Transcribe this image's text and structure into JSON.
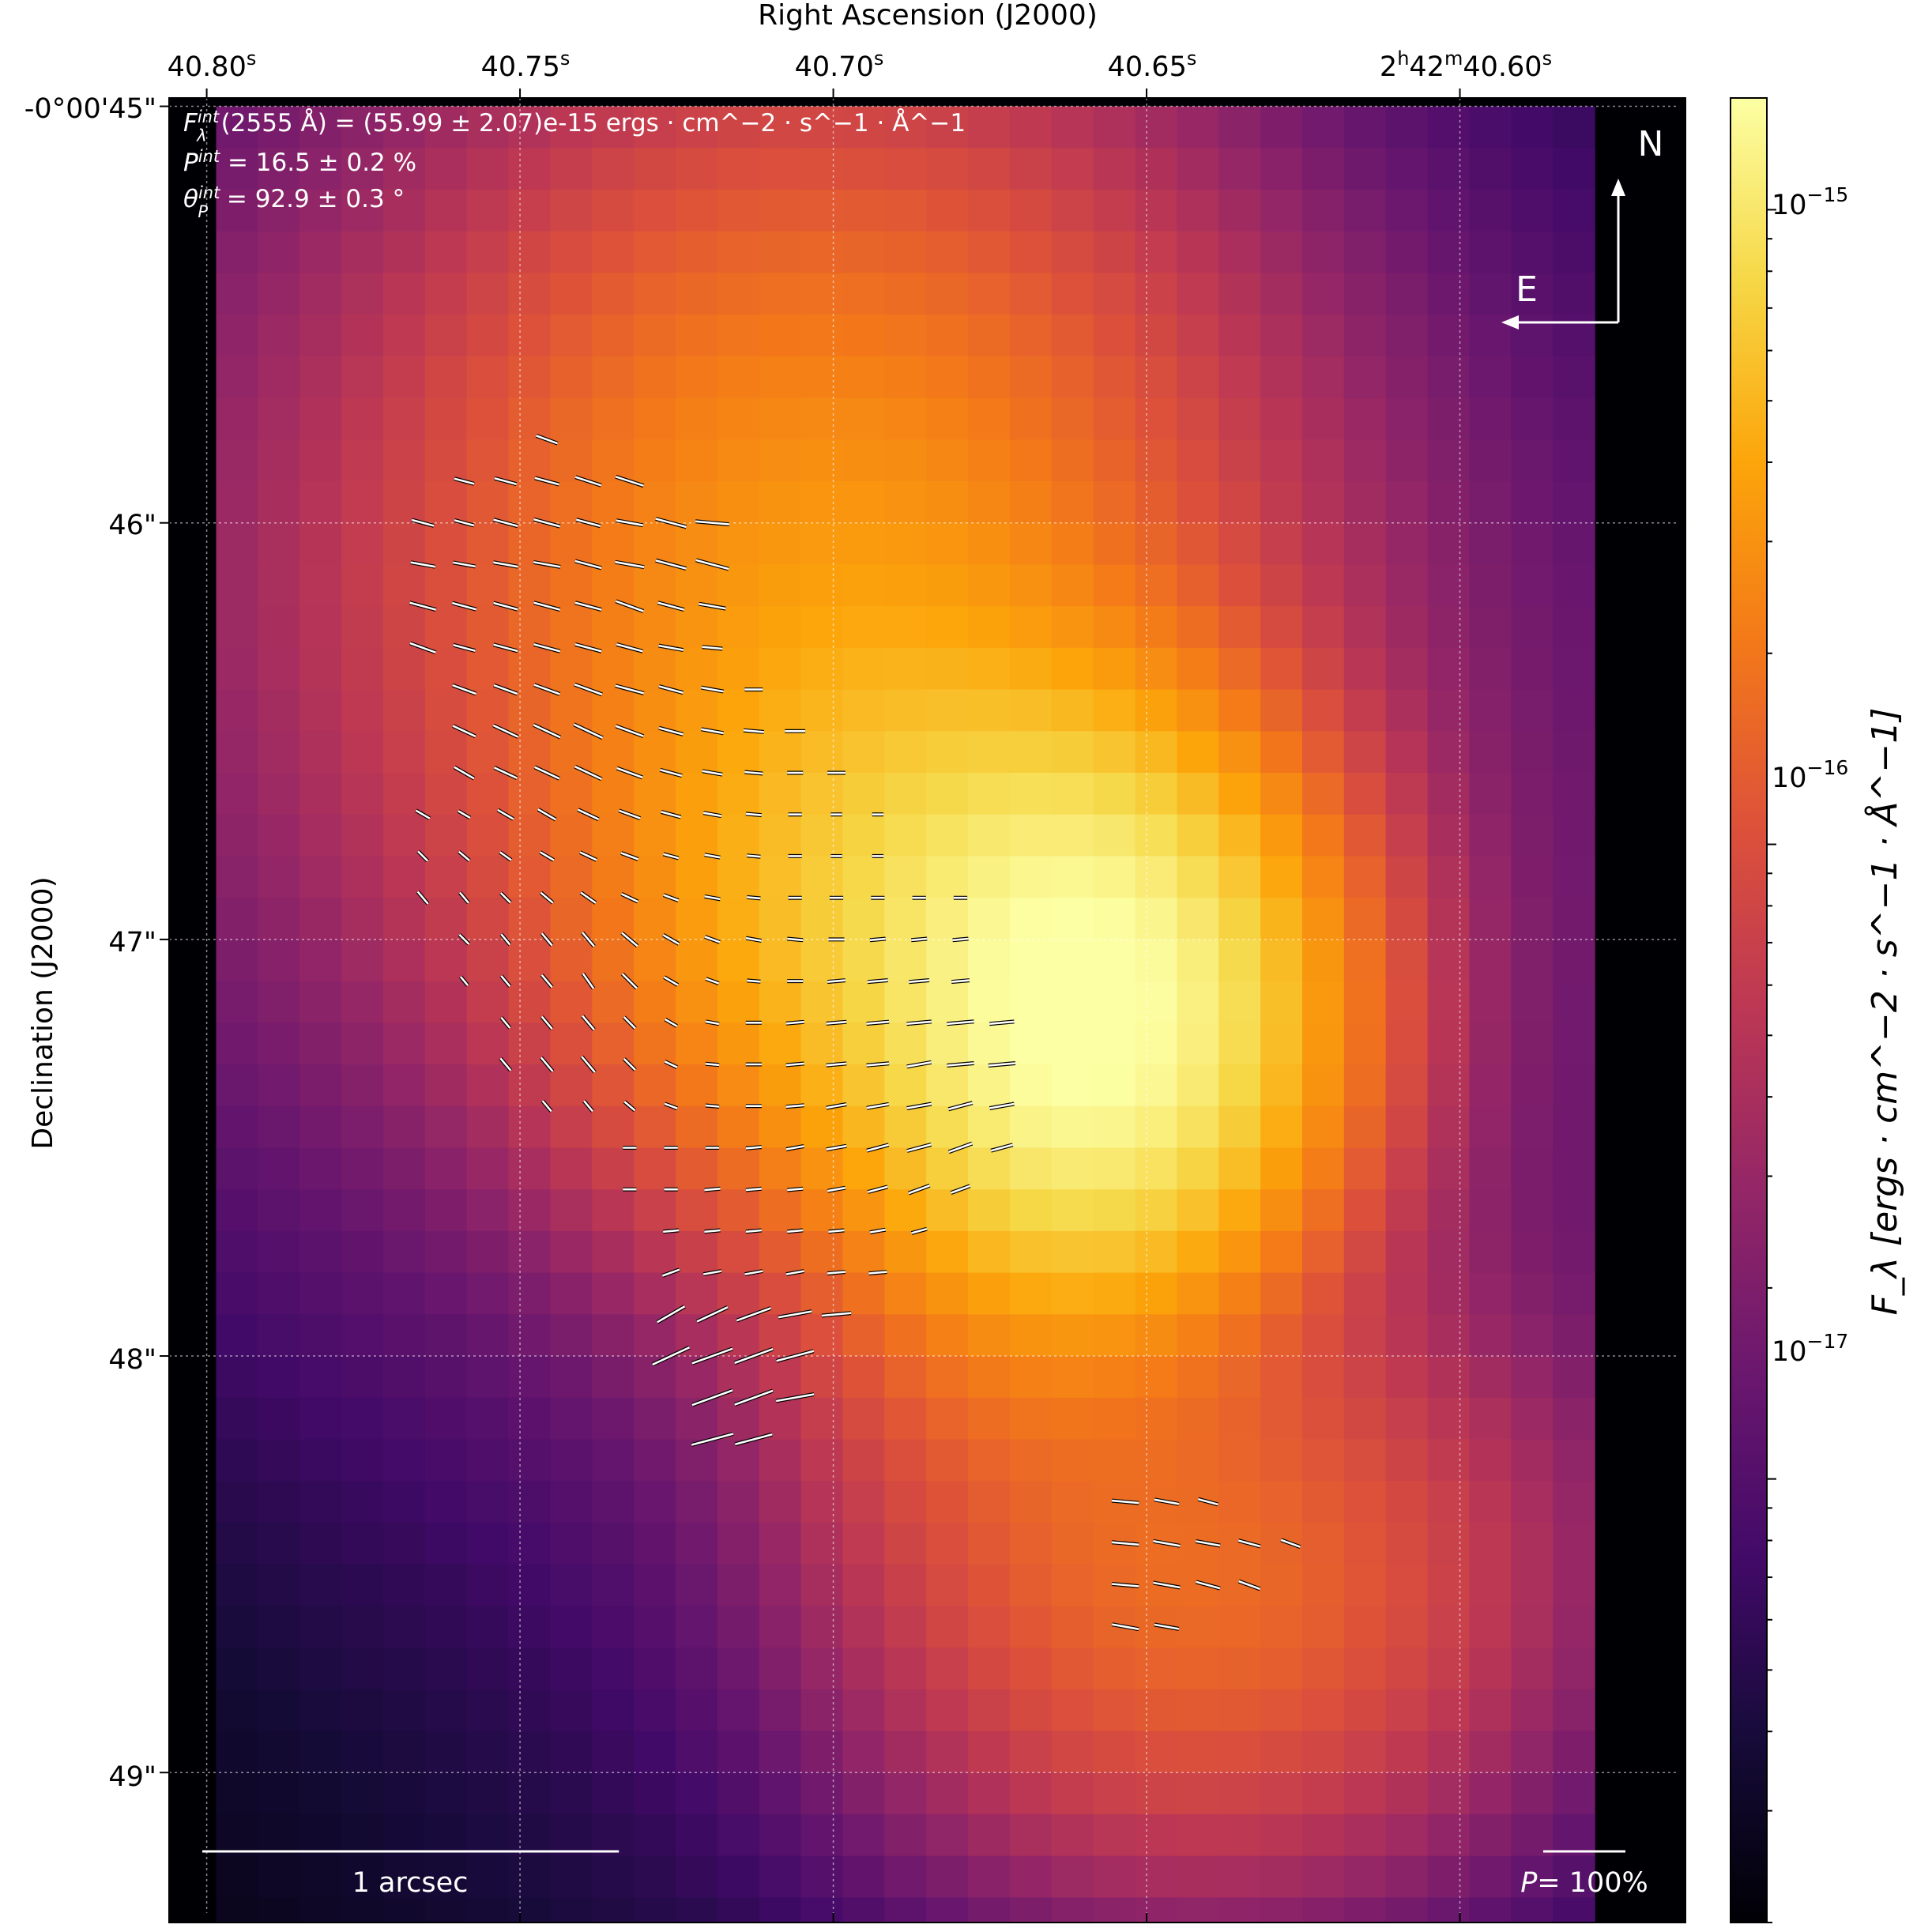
{
  "chart_data": {
    "type": "heatmap",
    "subtype": "polarization-map",
    "xlabel": "Right Ascension (J2000)",
    "ylabel": "Declination (J2000)",
    "colorbar_label": "F_λ [ergs · cm^−2 · s^−1 · Å^−1]",
    "colorbar_scale": "log",
    "colorbar_range": [
      2e-18,
      1.5e-15
    ],
    "colorbar_ticks": [
      {
        "value": 1e-15,
        "base": "10",
        "exp": "−15"
      },
      {
        "value": 1e-16,
        "base": "10",
        "exp": "−16"
      },
      {
        "value": 1e-17,
        "base": "10",
        "exp": "−17"
      }
    ],
    "colormap": "inferno",
    "colormap_stops": [
      "#000004",
      "#160b39",
      "#420a68",
      "#6a176e",
      "#932667",
      "#bc3754",
      "#dd513a",
      "#f37819",
      "#fca50a",
      "#f6d746",
      "#fcffa4"
    ],
    "x_ticks": [
      {
        "pre": "40.80",
        "sup": "s"
      },
      {
        "pre": "40.75",
        "sup": "s"
      },
      {
        "pre": "40.70",
        "sup": "s"
      },
      {
        "pre": "40.65",
        "sup": "s"
      },
      {
        "pre": "2",
        "sup": "h",
        "mid": "42",
        "sup2": "m",
        "post": "40.60",
        "sup3": "s"
      }
    ],
    "y_ticks": [
      "-0°00'45\"",
      "46\"",
      "47\"",
      "48\"",
      "49\""
    ],
    "ra_range_sec": [
      40.806,
      40.564
    ],
    "dec_range_arcsec": [
      44.98,
      49.36
    ],
    "grid": true,
    "annotation_lines": [
      {
        "sym": "F",
        "sub": "λ",
        "sup": "int",
        "rest": "(2555 Å) = (55.99 ± 2.07)e-15 ergs · cm^−2 · s^−1 · Å^−1"
      },
      {
        "sym": "P",
        "sup": "int",
        "rest": " = 16.5 ± 0.2 %"
      },
      {
        "sym": "θ",
        "sub": "P",
        "sup": "int",
        "rest": " = 92.9 ± 0.3 °"
      }
    ],
    "compass": {
      "north": "N",
      "east": "E"
    },
    "scale_bar": {
      "label": "1 arcsec",
      "arcsec": 1.0
    },
    "pol_scale": {
      "label_sym": "P",
      "label_rest": "= 100%"
    },
    "flux_map": {
      "ra_start_sec": 40.7985,
      "dec_start_arcsec": 45.0,
      "step_arcsec": 0.1,
      "nx": 33,
      "ny": 44,
      "components": [
        {
          "ra_sec": 40.664,
          "dec_arcsec": 47.19,
          "peak": 1.4e-15,
          "sigma_ra_arcsec": 0.3,
          "sigma_dec_arcsec": 0.38
        },
        {
          "ra_sec": 40.695,
          "dec_arcsec": 46.95,
          "peak": 5e-16,
          "sigma_ra_arcsec": 0.4,
          "sigma_dec_arcsec": 0.42
        },
        {
          "ra_sec": 40.708,
          "dec_arcsec": 46.1,
          "peak": 2.6e-16,
          "sigma_ra_arcsec": 0.55,
          "sigma_dec_arcsec": 0.62
        },
        {
          "ra_sec": 40.648,
          "dec_arcsec": 48.55,
          "peak": 1.5e-16,
          "sigma_ra_arcsec": 0.45,
          "sigma_dec_arcsec": 0.4
        },
        {
          "ra_sec": 40.683,
          "dec_arcsec": 47.85,
          "peak": 8e-17,
          "sigma_ra_arcsec": 0.3,
          "sigma_dec_arcsec": 0.4
        },
        {
          "ra_sec": 40.735,
          "dec_arcsec": 46.1,
          "peak": 3e-17,
          "sigma_ra_arcsec": 1.1,
          "sigma_dec_arcsec": 1.0
        },
        {
          "ra_sec": 40.645,
          "dec_arcsec": 47.4,
          "peak": 1.4e-17,
          "sigma_ra_arcsec": 1.2,
          "sigma_dec_arcsec": 1.3
        }
      ],
      "background": 2e-18
    },
    "vector_groups": [
      {
        "ra_start_sec": 40.7655,
        "ra_step_sec": 0.0066,
        "dec_start_arcsec": 45.8,
        "dec_step_arcsec": 0.1,
        "rows": [
          {
            "i0": 3,
            "n": 1,
            "len": [
              0.5
            ],
            "pa": [
              70
            ]
          },
          {
            "i0": 1,
            "n": 5,
            "len": [
              0.45,
              0.5,
              0.55,
              0.6,
              0.65
            ],
            "pa": [
              75,
              75,
              75,
              72,
              72
            ]
          },
          {
            "i0": 0,
            "n": 8,
            "len": [
              0.5,
              0.45,
              0.55,
              0.6,
              0.55,
              0.6,
              0.7,
              0.75
            ],
            "pa": [
              75,
              75,
              75,
              75,
              75,
              80,
              75,
              85
            ]
          },
          {
            "i0": 0,
            "n": 8,
            "len": [
              0.55,
              0.5,
              0.55,
              0.6,
              0.6,
              0.65,
              0.7,
              0.75
            ],
            "pa": [
              80,
              80,
              80,
              80,
              75,
              80,
              75,
              75
            ]
          },
          {
            "i0": 0,
            "n": 8,
            "len": [
              0.6,
              0.55,
              0.55,
              0.6,
              0.6,
              0.65,
              0.6,
              0.6
            ],
            "pa": [
              75,
              75,
              75,
              75,
              75,
              70,
              75,
              80
            ]
          },
          {
            "i0": 0,
            "n": 8,
            "len": [
              0.6,
              0.5,
              0.55,
              0.6,
              0.6,
              0.6,
              0.55,
              0.45
            ],
            "pa": [
              70,
              75,
              75,
              75,
              75,
              75,
              80,
              85
            ]
          },
          {
            "i0": 1,
            "n": 8,
            "len": [
              0.55,
              0.55,
              0.6,
              0.65,
              0.65,
              0.55,
              0.5,
              0.4
            ],
            "pa": [
              70,
              70,
              70,
              70,
              75,
              75,
              80,
              90
            ]
          },
          {
            "i0": 1,
            "n": 9,
            "len": [
              0.55,
              0.6,
              0.65,
              0.7,
              0.65,
              0.55,
              0.5,
              0.45,
              0.45
            ],
            "pa": [
              65,
              65,
              65,
              65,
              70,
              75,
              80,
              85,
              90
            ]
          },
          {
            "i0": 1,
            "n": 10,
            "len": [
              0.5,
              0.55,
              0.6,
              0.65,
              0.6,
              0.5,
              0.45,
              0.4,
              0.35,
              0.4
            ],
            "pa": [
              60,
              65,
              65,
              65,
              70,
              75,
              80,
              85,
              90,
              90
            ]
          },
          {
            "i0": 0,
            "n": 12,
            "len": [
              0.35,
              0.3,
              0.4,
              0.45,
              0.5,
              0.5,
              0.45,
              0.4,
              0.35,
              0.3,
              0.25,
              0.25
            ],
            "pa": [
              60,
              60,
              60,
              60,
              65,
              70,
              75,
              80,
              85,
              90,
              90,
              90
            ]
          }
        ]
      },
      {
        "ra_start_sec": 40.7655,
        "ra_step_sec": 0.0066,
        "dec_start_arcsec": 46.8,
        "dec_step_arcsec": 0.1,
        "rows": [
          {
            "i0": 0,
            "n": 13,
            "len": [
              0.3,
              0.3,
              0.3,
              0.35,
              0.4,
              0.4,
              0.35,
              0.35,
              0.3,
              0.3,
              0.25,
              0.25,
              0.0
            ],
            "pa": [
              45,
              50,
              55,
              60,
              65,
              70,
              75,
              80,
              85,
              90,
              90,
              90,
              90
            ]
          },
          {
            "i0": 0,
            "n": 14,
            "len": [
              0.35,
              0.3,
              0.3,
              0.35,
              0.4,
              0.4,
              0.35,
              0.35,
              0.3,
              0.3,
              0.3,
              0.3,
              0.3,
              0.3
            ],
            "pa": [
              40,
              40,
              45,
              50,
              55,
              65,
              70,
              80,
              85,
              90,
              90,
              90,
              90,
              90
            ]
          },
          {
            "i0": 1,
            "n": 13,
            "len": [
              0.3,
              0.3,
              0.35,
              0.4,
              0.45,
              0.4,
              0.35,
              0.35,
              0.35,
              0.35,
              0.35,
              0.35,
              0.35
            ],
            "pa": [
              45,
              40,
              40,
              40,
              50,
              60,
              70,
              80,
              85,
              90,
              95,
              95,
              95
            ]
          },
          {
            "i0": 1,
            "n": 13,
            "len": [
              0.25,
              0.3,
              0.35,
              0.4,
              0.45,
              0.35,
              0.3,
              0.3,
              0.35,
              0.4,
              0.45,
              0.45,
              0.4
            ],
            "pa": [
              40,
              40,
              40,
              35,
              45,
              60,
              70,
              85,
              90,
              95,
              95,
              95,
              95
            ]
          },
          {
            "i0": 2,
            "n": 13,
            "len": [
              0.3,
              0.35,
              0.4,
              0.35,
              0.3,
              0.3,
              0.35,
              0.4,
              0.45,
              0.5,
              0.55,
              0.6,
              0.55
            ],
            "pa": [
              40,
              40,
              40,
              45,
              60,
              80,
              90,
              95,
              95,
              95,
              95,
              95,
              95
            ]
          },
          {
            "i0": 2,
            "n": 13,
            "len": [
              0.35,
              0.4,
              0.45,
              0.35,
              0.3,
              0.3,
              0.35,
              0.4,
              0.45,
              0.5,
              0.55,
              0.6,
              0.6
            ],
            "pa": [
              40,
              40,
              40,
              45,
              65,
              85,
              90,
              95,
              95,
              95,
              100,
              95,
              95
            ]
          },
          {
            "i0": 3,
            "n": 12,
            "len": [
              0.3,
              0.3,
              0.3,
              0.3,
              0.3,
              0.35,
              0.4,
              0.45,
              0.5,
              0.55,
              0.55,
              0.55
            ],
            "pa": [
              40,
              40,
              50,
              70,
              85,
              90,
              95,
              100,
              100,
              100,
              105,
              100
            ]
          },
          {
            "i0": 5,
            "n": 10,
            "len": [
              0.3,
              0.3,
              0.3,
              0.35,
              0.4,
              0.45,
              0.5,
              0.55,
              0.55,
              0.5
            ],
            "pa": [
              90,
              90,
              90,
              95,
              100,
              100,
              105,
              105,
              110,
              105
            ]
          },
          {
            "i0": 5,
            "n": 9,
            "len": [
              0.3,
              0.3,
              0.35,
              0.35,
              0.35,
              0.4,
              0.45,
              0.5,
              0.45
            ],
            "pa": [
              90,
              90,
              95,
              95,
              95,
              100,
              105,
              110,
              110
            ]
          },
          {
            "i0": 6,
            "n": 7,
            "len": [
              0.35,
              0.35,
              0.35,
              0.35,
              0.35,
              0.35,
              0.35
            ],
            "pa": [
              95,
              95,
              95,
              95,
              95,
              100,
              105
            ]
          },
          {
            "i0": 6,
            "n": 6,
            "len": [
              0.4,
              0.4,
              0.4,
              0.4,
              0.4,
              0.4
            ],
            "pa": [
              110,
              100,
              100,
              100,
              95,
              95
            ]
          },
          {
            "i0": 6,
            "n": 5,
            "len": [
              0.7,
              0.75,
              0.8,
              0.75,
              0.65
            ],
            "pa": [
              120,
              115,
              110,
              100,
              95
            ]
          },
          {
            "i0": 6,
            "n": 4,
            "len": [
              0.9,
              0.95,
              0.9,
              0.85
            ],
            "pa": [
              115,
              110,
              110,
              105
            ]
          },
          {
            "i0": 7,
            "n": 3,
            "len": [
              0.95,
              0.9,
              0.85
            ],
            "pa": [
              110,
              110,
              100
            ]
          },
          {
            "i0": 7,
            "n": 3,
            "len": [
              0.95,
              0.85,
              0.0
            ],
            "pa": [
              105,
              105,
              100
            ]
          }
        ]
      },
      {
        "ra_start_sec": 40.6534,
        "ra_step_sec": 0.0066,
        "dec_start_arcsec": 48.35,
        "dec_step_arcsec": 0.1,
        "rows": [
          {
            "i0": 0,
            "n": 3,
            "len": [
              0.6,
              0.55,
              0.45
            ],
            "pa": [
              85,
              80,
              75
            ]
          },
          {
            "i0": 0,
            "n": 5,
            "len": [
              0.6,
              0.6,
              0.55,
              0.5,
              0.45
            ],
            "pa": [
              85,
              80,
              80,
              75,
              70
            ]
          },
          {
            "i0": 0,
            "n": 4,
            "len": [
              0.6,
              0.6,
              0.55,
              0.5
            ],
            "pa": [
              85,
              80,
              75,
              70
            ]
          },
          {
            "i0": 0,
            "n": 2,
            "len": [
              0.6,
              0.55
            ],
            "pa": [
              80,
              80
            ]
          }
        ]
      }
    ]
  }
}
